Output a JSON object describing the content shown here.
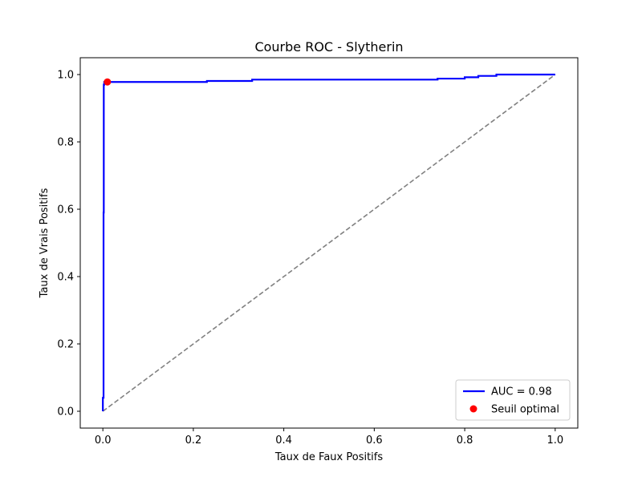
{
  "chart_data": {
    "type": "line",
    "title": "Courbe ROC - Slytherin",
    "xlabel": "Taux de Faux Positifs",
    "ylabel": "Taux de Vrais Positifs",
    "xlim": [
      -0.05,
      1.05
    ],
    "ylim": [
      -0.05,
      1.05
    ],
    "xticks": [
      "0.0",
      "0.2",
      "0.4",
      "0.6",
      "0.8",
      "1.0"
    ],
    "yticks": [
      "0.0",
      "0.2",
      "0.4",
      "0.6",
      "0.8",
      "1.0"
    ],
    "grid": false,
    "legend_position": "lower-right",
    "series": [
      {
        "name": "AUC = 0.98",
        "color": "#0000ff",
        "style": "solid",
        "x": [
          0.0,
          0.0,
          0.0015,
          0.0015,
          0.002,
          0.002,
          0.003,
          0.003,
          0.23,
          0.23,
          0.33,
          0.33,
          0.74,
          0.74,
          0.8,
          0.8,
          0.83,
          0.83,
          0.87,
          0.87,
          1.0
        ],
        "y": [
          0.0,
          0.04,
          0.04,
          0.59,
          0.59,
          0.97,
          0.97,
          0.978,
          0.978,
          0.981,
          0.981,
          0.985,
          0.985,
          0.988,
          0.988,
          0.992,
          0.992,
          0.996,
          0.996,
          1.0,
          1.0
        ]
      },
      {
        "name": "",
        "color": "#808080",
        "style": "dashed",
        "x": [
          0.0,
          1.0
        ],
        "y": [
          0.0,
          1.0
        ]
      }
    ],
    "points": [
      {
        "name": "Seuil optimal",
        "color": "#ff0000",
        "x": 0.01,
        "y": 0.978
      }
    ],
    "legend": [
      {
        "label": "AUC = 0.98",
        "kind": "line",
        "color": "#0000ff"
      },
      {
        "label": "Seuil optimal",
        "kind": "marker",
        "color": "#ff0000"
      }
    ]
  }
}
